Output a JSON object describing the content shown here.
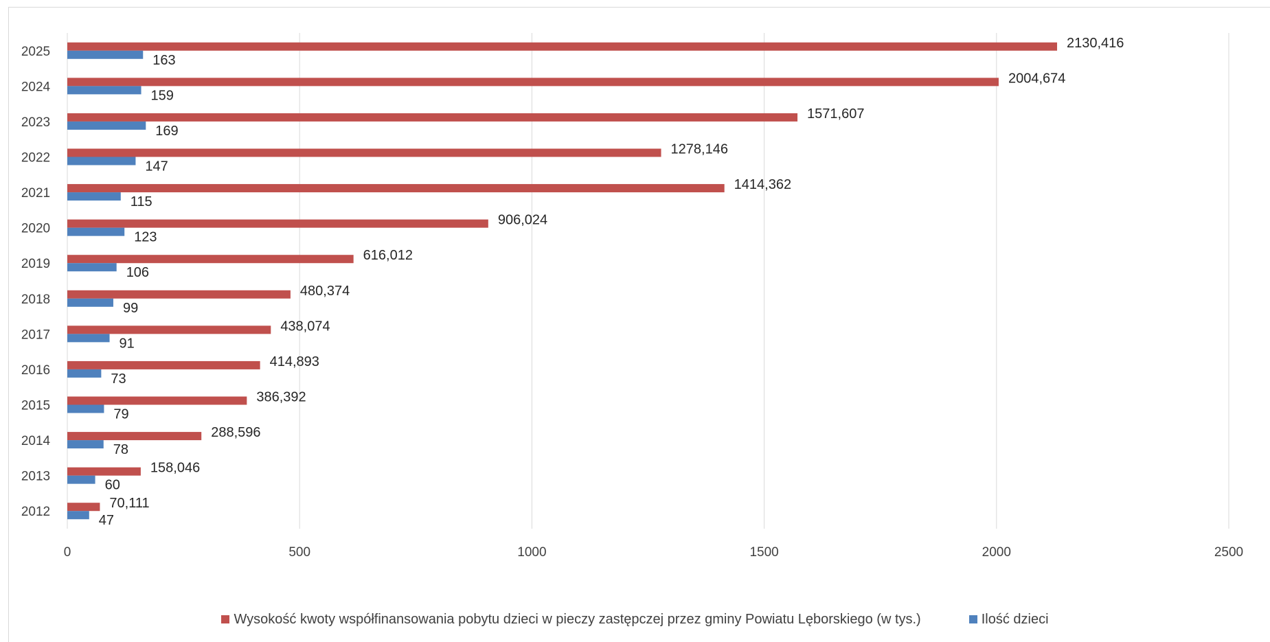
{
  "chart_data": {
    "type": "bar",
    "orientation": "horizontal",
    "categories": [
      "2012",
      "2013",
      "2014",
      "2015",
      "2016",
      "2017",
      "2018",
      "2019",
      "2020",
      "2021",
      "2022",
      "2023",
      "2024",
      "2025"
    ],
    "series": [
      {
        "name": "Wysokość kwoty współfinansowania pobytu dzieci w pieczy zastępczej przez gminy Powiatu Lęborskiego (w tys.)",
        "color": "#c0504d",
        "values": [
          70.111,
          158.046,
          288.596,
          386.392,
          414.893,
          438.074,
          480.374,
          616.012,
          906.024,
          1414.362,
          1278.146,
          1571.607,
          2004.674,
          2130.416
        ],
        "labels": [
          "70,111",
          "158,046",
          "288,596",
          "386,392",
          "414,893",
          "438,074",
          "480,374",
          "616,012",
          "906,024",
          "1414,362",
          "1278,146",
          "1571,607",
          "2004,674",
          "2130,416"
        ]
      },
      {
        "name": "Ilość dzieci",
        "color": "#4f81bd",
        "values": [
          47,
          60,
          78,
          79,
          73,
          91,
          99,
          106,
          123,
          115,
          147,
          169,
          159,
          163
        ],
        "labels": [
          "47",
          "60",
          "78",
          "79",
          "73",
          "91",
          "99",
          "106",
          "123",
          "115",
          "147",
          "169",
          "159",
          "163"
        ]
      }
    ],
    "xlim": [
      0,
      2500
    ],
    "x_ticks": [
      0,
      500,
      1000,
      1500,
      2000,
      2500
    ],
    "x_tick_labels": [
      "0",
      "500",
      "1000",
      "1500",
      "2000",
      "2500"
    ],
    "grid": "vertical",
    "legend_position": "bottom"
  }
}
